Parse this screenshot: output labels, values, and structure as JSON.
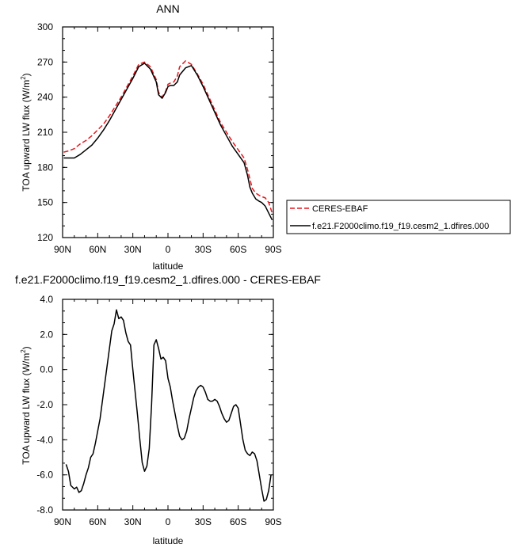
{
  "chart_data": [
    {
      "type": "line",
      "title": "ANN",
      "xlabel": "latitude",
      "ylabel_main": "TOA upward LW flux (W/m",
      "ylabel_sup": "2",
      "ylabel_close": ")",
      "xlim": [
        90,
        -90
      ],
      "ylim": [
        120,
        300
      ],
      "x_ticks": [
        90,
        60,
        30,
        0,
        -30,
        -60,
        -90
      ],
      "x_tick_labels": [
        "90N",
        "60N",
        "30N",
        "0",
        "30S",
        "60S",
        "90S"
      ],
      "y_ticks": [
        120,
        150,
        180,
        210,
        240,
        270,
        300
      ],
      "y_tick_labels": [
        "120",
        "150",
        "180",
        "210",
        "240",
        "270",
        "300"
      ],
      "legend_position": "right",
      "series": [
        {
          "name": "CERES-EBAF",
          "color": "#e8151b",
          "dash": true,
          "x": [
            89,
            85,
            80,
            75,
            70,
            65,
            60,
            55,
            50,
            45,
            40,
            35,
            30,
            25,
            20,
            15,
            10,
            8,
            5,
            2,
            0,
            -2,
            -5,
            -8,
            -10,
            -15,
            -20,
            -25,
            -30,
            -35,
            -40,
            -45,
            -50,
            -55,
            -60,
            -65,
            -68,
            -70,
            -72,
            -75,
            -78,
            -80,
            -83,
            -86,
            -89
          ],
          "y": [
            193,
            194,
            196,
            200,
            203,
            207,
            212,
            217,
            224,
            232,
            240,
            249,
            258,
            268,
            270,
            266,
            255,
            244,
            240,
            245,
            251,
            252,
            253,
            258,
            266,
            271,
            268,
            260,
            251,
            240,
            229,
            218,
            210,
            202,
            195,
            188,
            178,
            170,
            162,
            158,
            156,
            155,
            154,
            150,
            141
          ]
        },
        {
          "name": "f.e21.F2000climo.f19_f19.cesm2_1.dfires.000",
          "color": "#000000",
          "dash": false,
          "x": [
            89,
            85,
            80,
            75,
            70,
            65,
            60,
            55,
            50,
            45,
            40,
            35,
            30,
            25,
            20,
            15,
            10,
            8,
            5,
            2,
            0,
            -2,
            -5,
            -8,
            -10,
            -15,
            -20,
            -25,
            -30,
            -35,
            -40,
            -45,
            -50,
            -55,
            -60,
            -65,
            -68,
            -70,
            -72,
            -75,
            -78,
            -80,
            -83,
            -86,
            -89
          ],
          "y": [
            188,
            188,
            188,
            191,
            195,
            199,
            205,
            212,
            220,
            229,
            238,
            247,
            256,
            266,
            269,
            264,
            253,
            242,
            239,
            244,
            249,
            250,
            250,
            253,
            259,
            265,
            267,
            259,
            249,
            238,
            227,
            216,
            207,
            198,
            191,
            184,
            173,
            163,
            158,
            153,
            151,
            150,
            147,
            141,
            135
          ]
        }
      ]
    },
    {
      "type": "line",
      "title": "f.e21.F2000climo.f19_f19.cesm2_1.dfires.000 - CERES-EBAF",
      "xlabel": "latitude",
      "ylabel_main": "TOA upward LW flux (W/m",
      "ylabel_sup": "2",
      "ylabel_close": ")",
      "xlim": [
        90,
        -90
      ],
      "ylim": [
        -8,
        4
      ],
      "x_ticks": [
        90,
        60,
        30,
        0,
        -30,
        -60,
        -90
      ],
      "x_tick_labels": [
        "90N",
        "60N",
        "30N",
        "0",
        "30S",
        "60S",
        "90S"
      ],
      "y_ticks": [
        -8,
        -6,
        -4,
        -2,
        0,
        2,
        4
      ],
      "y_tick_labels": [
        "-8.0",
        "-6.0",
        "-4.0",
        "-2.0",
        "0.0",
        "2.0",
        "4.0"
      ],
      "series": [
        {
          "name": "",
          "color": "#000000",
          "dash": false,
          "x": [
            87,
            85,
            83,
            80,
            78,
            76,
            74,
            72,
            70,
            68,
            66,
            64,
            62,
            60,
            58,
            56,
            54,
            52,
            50,
            48,
            46,
            44,
            42,
            40,
            38,
            36,
            34,
            32,
            30,
            28,
            26,
            24,
            22,
            20,
            18,
            16,
            14,
            12,
            10,
            8,
            6,
            4,
            2,
            0,
            -2,
            -4,
            -6,
            -8,
            -10,
            -12,
            -14,
            -16,
            -18,
            -20,
            -22,
            -24,
            -26,
            -28,
            -30,
            -32,
            -34,
            -36,
            -38,
            -40,
            -42,
            -44,
            -46,
            -48,
            -50,
            -52,
            -54,
            -56,
            -58,
            -60,
            -62,
            -64,
            -66,
            -68,
            -70,
            -72,
            -74,
            -76,
            -78,
            -80,
            -82,
            -84,
            -86,
            -88
          ],
          "y": [
            -5.4,
            -5.8,
            -6.6,
            -6.8,
            -6.7,
            -7.0,
            -6.9,
            -6.5,
            -6.0,
            -5.6,
            -5.0,
            -4.8,
            -4.2,
            -3.5,
            -2.8,
            -1.8,
            -0.8,
            0.2,
            1.2,
            2.2,
            2.6,
            3.4,
            2.9,
            3.0,
            2.8,
            2.1,
            1.6,
            1.4,
            0.0,
            -1.3,
            -2.6,
            -4.0,
            -5.3,
            -5.8,
            -5.5,
            -4.5,
            -2.0,
            1.4,
            1.7,
            1.2,
            0.6,
            0.7,
            0.5,
            -0.5,
            -1.0,
            -1.8,
            -2.5,
            -3.2,
            -3.8,
            -4.0,
            -3.9,
            -3.5,
            -2.8,
            -2.2,
            -1.6,
            -1.2,
            -1.0,
            -0.9,
            -1.0,
            -1.3,
            -1.7,
            -1.8,
            -1.8,
            -1.7,
            -1.8,
            -2.1,
            -2.5,
            -2.8,
            -3.0,
            -2.9,
            -2.5,
            -2.1,
            -2.0,
            -2.2,
            -3.1,
            -4.0,
            -4.6,
            -4.8,
            -4.9,
            -4.7,
            -4.8,
            -5.2,
            -6.0,
            -6.8,
            -7.5,
            -7.4,
            -6.9,
            -6.0
          ]
        }
      ]
    }
  ]
}
